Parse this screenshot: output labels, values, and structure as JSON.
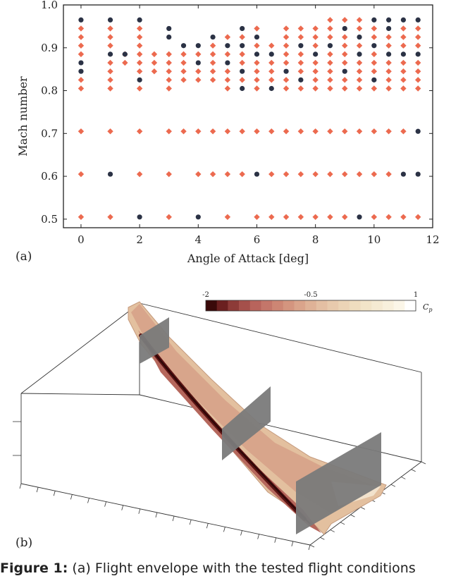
{
  "chart_data": [
    {
      "type": "scatter",
      "panel_label": "(a)",
      "xlabel": "Angle of Attack [deg]",
      "ylabel": "Mach number",
      "xlim": [
        -0.6,
        12
      ],
      "ylim": [
        0.48,
        1.0
      ],
      "xticks": [
        0,
        2,
        4,
        6,
        8,
        10,
        12
      ],
      "yticks": [
        0.5,
        0.6,
        0.7,
        0.8,
        0.9,
        1.0
      ],
      "ytick_labels": [
        "0.5",
        "0.6",
        "0.7",
        "0.8",
        "0.9",
        "1.0"
      ],
      "grid": false,
      "series": [
        {
          "marker": "diamond",
          "color": "#ec6a4f",
          "points": [
            [
              0,
              0.945
            ],
            [
              0,
              0.925
            ],
            [
              0,
              0.905
            ],
            [
              0,
              0.885
            ],
            [
              0,
              0.825
            ],
            [
              0,
              0.805
            ],
            [
              0,
              0.705
            ],
            [
              0,
              0.605
            ],
            [
              0,
              0.505
            ],
            [
              1,
              0.945
            ],
            [
              1,
              0.925
            ],
            [
              1,
              0.905
            ],
            [
              1,
              0.865
            ],
            [
              1,
              0.845
            ],
            [
              1,
              0.825
            ],
            [
              1,
              0.805
            ],
            [
              1,
              0.705
            ],
            [
              1,
              0.505
            ],
            [
              1.5,
              0.885
            ],
            [
              1.5,
              0.865
            ],
            [
              2,
              0.945
            ],
            [
              2,
              0.925
            ],
            [
              2,
              0.905
            ],
            [
              2,
              0.885
            ],
            [
              2,
              0.865
            ],
            [
              2,
              0.845
            ],
            [
              2,
              0.805
            ],
            [
              2,
              0.705
            ],
            [
              2,
              0.605
            ],
            [
              2.5,
              0.885
            ],
            [
              2.5,
              0.865
            ],
            [
              2.5,
              0.845
            ],
            [
              3,
              0.885
            ],
            [
              3,
              0.865
            ],
            [
              3,
              0.845
            ],
            [
              3,
              0.825
            ],
            [
              3,
              0.805
            ],
            [
              3,
              0.705
            ],
            [
              3,
              0.605
            ],
            [
              3,
              0.505
            ],
            [
              3.5,
              0.885
            ],
            [
              3.5,
              0.865
            ],
            [
              3.5,
              0.845
            ],
            [
              3.5,
              0.825
            ],
            [
              3.5,
              0.705
            ],
            [
              4,
              0.885
            ],
            [
              4,
              0.845
            ],
            [
              4,
              0.825
            ],
            [
              4,
              0.705
            ],
            [
              4,
              0.605
            ],
            [
              4.5,
              0.905
            ],
            [
              4.5,
              0.885
            ],
            [
              4.5,
              0.865
            ],
            [
              4.5,
              0.845
            ],
            [
              4.5,
              0.825
            ],
            [
              4.5,
              0.705
            ],
            [
              4.5,
              0.605
            ],
            [
              5,
              0.925
            ],
            [
              5,
              0.885
            ],
            [
              5,
              0.845
            ],
            [
              5,
              0.825
            ],
            [
              5,
              0.805
            ],
            [
              5,
              0.705
            ],
            [
              5,
              0.605
            ],
            [
              5,
              0.505
            ],
            [
              5.5,
              0.925
            ],
            [
              5.5,
              0.885
            ],
            [
              5.5,
              0.865
            ],
            [
              5.5,
              0.825
            ],
            [
              5.5,
              0.705
            ],
            [
              5.5,
              0.605
            ],
            [
              6,
              0.945
            ],
            [
              6,
              0.905
            ],
            [
              6,
              0.865
            ],
            [
              6,
              0.845
            ],
            [
              6,
              0.825
            ],
            [
              6,
              0.805
            ],
            [
              6,
              0.705
            ],
            [
              6,
              0.505
            ],
            [
              6.5,
              0.905
            ],
            [
              6.5,
              0.865
            ],
            [
              6.5,
              0.845
            ],
            [
              6.5,
              0.825
            ],
            [
              6.5,
              0.705
            ],
            [
              6.5,
              0.605
            ],
            [
              6.5,
              0.505
            ],
            [
              7,
              0.945
            ],
            [
              7,
              0.925
            ],
            [
              7,
              0.905
            ],
            [
              7,
              0.885
            ],
            [
              7,
              0.865
            ],
            [
              7,
              0.825
            ],
            [
              7,
              0.805
            ],
            [
              7,
              0.705
            ],
            [
              7,
              0.605
            ],
            [
              7,
              0.505
            ],
            [
              7.5,
              0.945
            ],
            [
              7.5,
              0.925
            ],
            [
              7.5,
              0.885
            ],
            [
              7.5,
              0.865
            ],
            [
              7.5,
              0.845
            ],
            [
              7.5,
              0.805
            ],
            [
              7.5,
              0.705
            ],
            [
              7.5,
              0.605
            ],
            [
              7.5,
              0.505
            ],
            [
              8,
              0.945
            ],
            [
              8,
              0.925
            ],
            [
              8,
              0.905
            ],
            [
              8,
              0.865
            ],
            [
              8,
              0.845
            ],
            [
              8,
              0.825
            ],
            [
              8,
              0.805
            ],
            [
              8,
              0.705
            ],
            [
              8,
              0.605
            ],
            [
              8,
              0.505
            ],
            [
              8.5,
              0.965
            ],
            [
              8.5,
              0.945
            ],
            [
              8.5,
              0.925
            ],
            [
              8.5,
              0.885
            ],
            [
              8.5,
              0.865
            ],
            [
              8.5,
              0.845
            ],
            [
              8.5,
              0.825
            ],
            [
              8.5,
              0.805
            ],
            [
              8.5,
              0.705
            ],
            [
              8.5,
              0.605
            ],
            [
              8.5,
              0.505
            ],
            [
              9,
              0.965
            ],
            [
              9,
              0.925
            ],
            [
              9,
              0.905
            ],
            [
              9,
              0.885
            ],
            [
              9,
              0.865
            ],
            [
              9,
              0.825
            ],
            [
              9,
              0.805
            ],
            [
              9,
              0.705
            ],
            [
              9,
              0.605
            ],
            [
              9,
              0.505
            ],
            [
              9.5,
              0.965
            ],
            [
              9.5,
              0.945
            ],
            [
              9.5,
              0.905
            ],
            [
              9.5,
              0.865
            ],
            [
              9.5,
              0.845
            ],
            [
              9.5,
              0.825
            ],
            [
              9.5,
              0.805
            ],
            [
              9.5,
              0.705
            ],
            [
              9.5,
              0.605
            ],
            [
              10,
              0.945
            ],
            [
              10,
              0.925
            ],
            [
              10,
              0.885
            ],
            [
              10,
              0.865
            ],
            [
              10,
              0.845
            ],
            [
              10,
              0.805
            ],
            [
              10,
              0.705
            ],
            [
              10,
              0.605
            ],
            [
              10,
              0.505
            ],
            [
              10.5,
              0.925
            ],
            [
              10.5,
              0.905
            ],
            [
              10.5,
              0.865
            ],
            [
              10.5,
              0.845
            ],
            [
              10.5,
              0.825
            ],
            [
              10.5,
              0.805
            ],
            [
              10.5,
              0.705
            ],
            [
              10.5,
              0.605
            ],
            [
              10.5,
              0.505
            ],
            [
              11,
              0.945
            ],
            [
              11,
              0.925
            ],
            [
              11,
              0.905
            ],
            [
              11,
              0.865
            ],
            [
              11,
              0.845
            ],
            [
              11,
              0.825
            ],
            [
              11,
              0.805
            ],
            [
              11,
              0.705
            ],
            [
              11,
              0.505
            ],
            [
              11.5,
              0.945
            ],
            [
              11.5,
              0.925
            ],
            [
              11.5,
              0.905
            ],
            [
              11.5,
              0.865
            ],
            [
              11.5,
              0.845
            ],
            [
              11.5,
              0.825
            ],
            [
              11.5,
              0.805
            ],
            [
              11.5,
              0.505
            ]
          ]
        },
        {
          "marker": "circle",
          "color": "#2b3245",
          "points": [
            [
              0,
              0.965
            ],
            [
              0,
              0.865
            ],
            [
              0,
              0.845
            ],
            [
              1,
              0.965
            ],
            [
              1,
              0.885
            ],
            [
              1,
              0.605
            ],
            [
              1.5,
              0.885
            ],
            [
              2,
              0.965
            ],
            [
              2,
              0.825
            ],
            [
              2,
              0.505
            ],
            [
              3,
              0.945
            ],
            [
              3,
              0.925
            ],
            [
              3.5,
              0.905
            ],
            [
              4,
              0.905
            ],
            [
              4,
              0.865
            ],
            [
              4,
              0.505
            ],
            [
              4.5,
              0.925
            ],
            [
              5,
              0.905
            ],
            [
              5,
              0.865
            ],
            [
              5.5,
              0.945
            ],
            [
              5.5,
              0.905
            ],
            [
              5.5,
              0.845
            ],
            [
              5.5,
              0.805
            ],
            [
              6,
              0.925
            ],
            [
              6,
              0.885
            ],
            [
              6,
              0.605
            ],
            [
              6.5,
              0.885
            ],
            [
              6.5,
              0.805
            ],
            [
              7,
              0.845
            ],
            [
              7.5,
              0.905
            ],
            [
              7.5,
              0.825
            ],
            [
              8,
              0.885
            ],
            [
              8.5,
              0.905
            ],
            [
              9,
              0.945
            ],
            [
              9,
              0.845
            ],
            [
              9.5,
              0.925
            ],
            [
              9.5,
              0.885
            ],
            [
              9.5,
              0.505
            ],
            [
              10,
              0.965
            ],
            [
              10,
              0.905
            ],
            [
              10,
              0.825
            ],
            [
              10.5,
              0.965
            ],
            [
              10.5,
              0.945
            ],
            [
              10.5,
              0.885
            ],
            [
              11,
              0.965
            ],
            [
              11,
              0.885
            ],
            [
              11,
              0.605
            ],
            [
              11.5,
              0.965
            ],
            [
              11.5,
              0.885
            ],
            [
              11.5,
              0.705
            ],
            [
              11.5,
              0.605
            ]
          ]
        }
      ]
    },
    {
      "type": "surface-contour",
      "panel_label": "(b)",
      "colorbar": {
        "label": "C",
        "label_sub": "p",
        "ticks": [
          -2,
          -0.5,
          1
        ],
        "tick_labels": [
          "-2",
          "-0.5",
          "1"
        ],
        "colors": [
          "#3a0a0a",
          "#6b2020",
          "#8d3b38",
          "#a5504b",
          "#b8645c",
          "#c4766a",
          "#cd8674",
          "#d4957f",
          "#daa48b",
          "#dfb297",
          "#e4bfa3",
          "#e8caad",
          "#ecd4b6",
          "#efddbf",
          "#f2e4c8",
          "#f5ead2",
          "#f8f0dc",
          "#fbf6e8",
          "#ffffff"
        ]
      }
    }
  ],
  "caption": {
    "bold": "Figure 1:",
    "text": " (a) Flight envelope with the tested flight conditions"
  }
}
